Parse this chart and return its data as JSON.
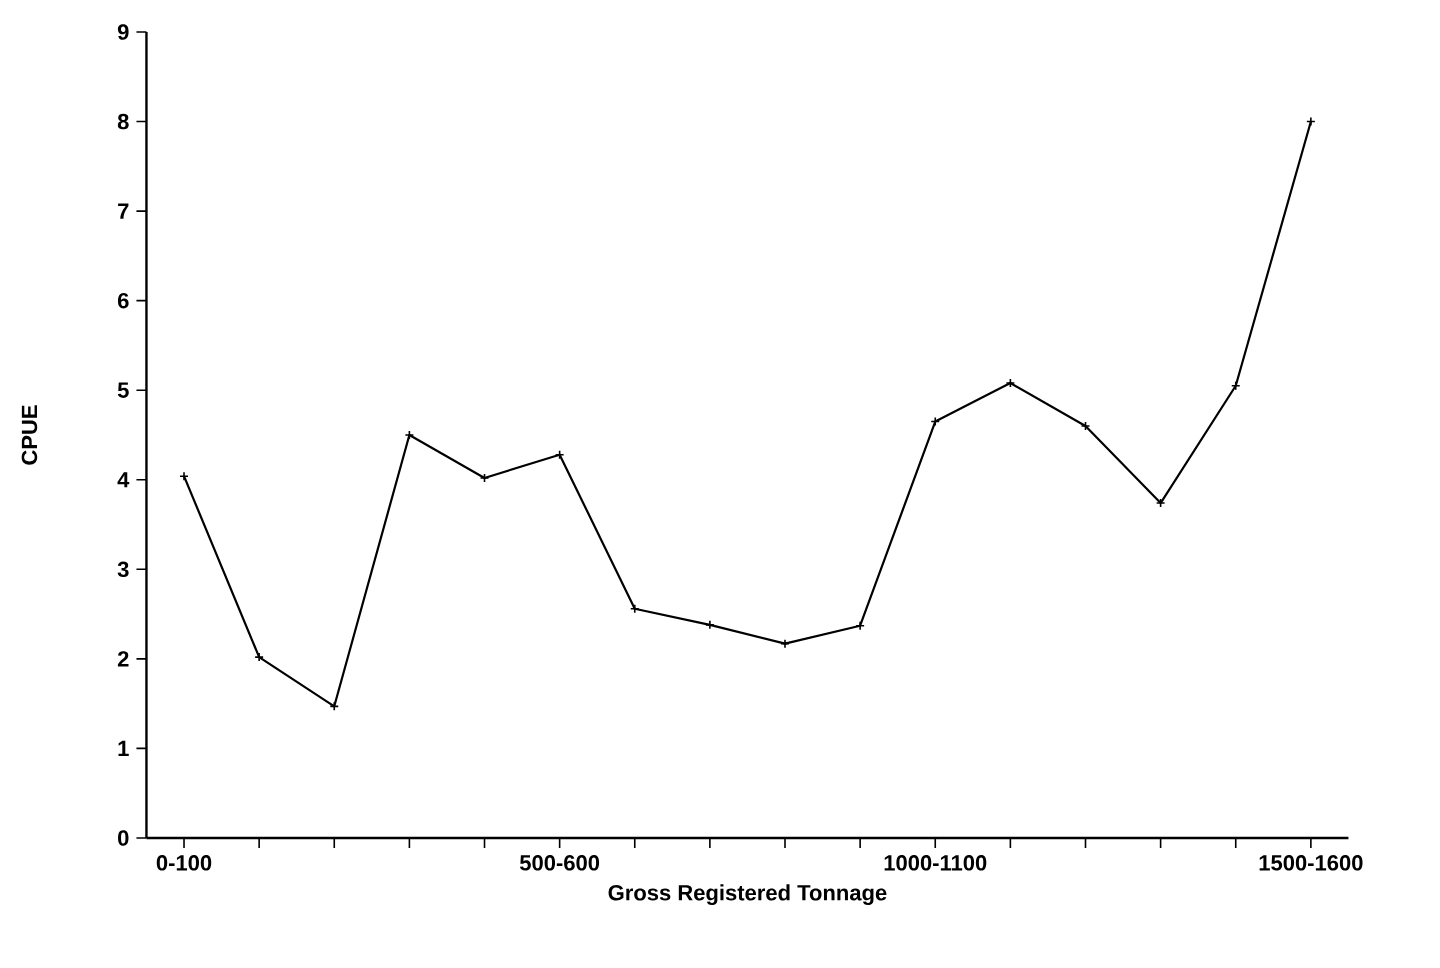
{
  "chart_data": {
    "type": "line",
    "xlabel": "Gross Registered Tonnage",
    "ylabel": "CPUE",
    "categories": [
      "0-100",
      null,
      null,
      null,
      null,
      "500-600",
      null,
      null,
      null,
      null,
      "1000-1100",
      null,
      null,
      null,
      null,
      "1500-1600"
    ],
    "series": [
      {
        "color": "#000000",
        "values": [
          4.04,
          2.02,
          1.47,
          4.5,
          4.02,
          4.28,
          2.56,
          2.38,
          2.17,
          2.37,
          4.65,
          5.08,
          4.6,
          3.74,
          5.05,
          8.0
        ]
      }
    ],
    "ylim": [
      0,
      9
    ],
    "yticks": [
      0,
      1,
      2,
      3,
      4,
      5,
      6,
      7,
      8,
      9
    ],
    "marker": "cross",
    "line_style": "solid"
  }
}
